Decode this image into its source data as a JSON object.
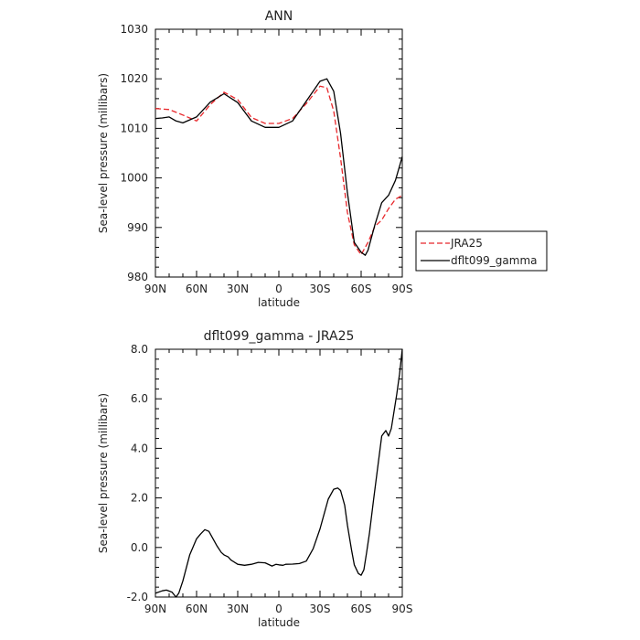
{
  "chart_data": [
    {
      "type": "line",
      "title": "ANN",
      "xlabel": "latitude",
      "ylabel": "Sea-level pressure (millibars)",
      "x_tick_labels": [
        "90N",
        "60N",
        "30N",
        "0",
        "30S",
        "60S",
        "90S"
      ],
      "x_ticks": [
        90,
        60,
        30,
        0,
        -30,
        -60,
        -90
      ],
      "xlim": [
        90,
        -90
      ],
      "y_ticks": [
        980,
        990,
        1000,
        1010,
        1020,
        1030
      ],
      "y_tick_labels": [
        "980",
        "990",
        "1000",
        "1010",
        "1020",
        "1030"
      ],
      "ylim": [
        980,
        1030
      ],
      "grid": false,
      "legend_position": "outside-right",
      "series": [
        {
          "name": "JRA25",
          "color": "#e8262a",
          "dash": true,
          "x": [
            90,
            80,
            70,
            60,
            50,
            40,
            30,
            20,
            10,
            0,
            -10,
            -20,
            -30,
            -35,
            -40,
            -45,
            -50,
            -55,
            -60,
            -65,
            -70,
            -75,
            -80,
            -85,
            -90
          ],
          "y": [
            1014,
            1013.8,
            1012.7,
            1011.5,
            1014.8,
            1017.3,
            1015.8,
            1012.2,
            1011,
            1011,
            1012,
            1015,
            1018.5,
            1018.2,
            1013.5,
            1004,
            993,
            986.5,
            984.5,
            987,
            990.2,
            991.5,
            993.8,
            995.7,
            996.5
          ]
        },
        {
          "name": "dflt099_gamma",
          "color": "#000000",
          "dash": false,
          "x": [
            90,
            85,
            80,
            75,
            70,
            60,
            50,
            40,
            30,
            20,
            10,
            0,
            -10,
            -20,
            -30,
            -35,
            -40,
            -45,
            -50,
            -55,
            -60,
            -63,
            -65,
            -70,
            -75,
            -80,
            -85,
            -90
          ],
          "y": [
            1012,
            1012.1,
            1012.3,
            1011.5,
            1011.1,
            1012.3,
            1015.3,
            1017,
            1015.2,
            1011.5,
            1010.2,
            1010.2,
            1011.5,
            1015.5,
            1019.5,
            1020,
            1017.5,
            1009,
            997,
            987,
            985,
            984.4,
            985.4,
            990.5,
            995,
            996.5,
            999.5,
            1004.3
          ]
        }
      ]
    },
    {
      "type": "line",
      "title": "dflt099_gamma - JRA25",
      "xlabel": "latitude",
      "ylabel": "Sea-level pressure (millibars)",
      "x_tick_labels": [
        "90N",
        "60N",
        "30N",
        "0",
        "30S",
        "60S",
        "90S"
      ],
      "x_ticks": [
        90,
        60,
        30,
        0,
        -30,
        -60,
        -90
      ],
      "xlim": [
        90,
        -90
      ],
      "y_ticks": [
        -2,
        0,
        2,
        4,
        6,
        8
      ],
      "y_tick_labels": [
        "-2.0",
        "0.0",
        "2.0",
        "4.0",
        "6.0",
        "8.0"
      ],
      "ylim": [
        -2,
        8
      ],
      "grid": false,
      "series": [
        {
          "name": "",
          "color": "#000000",
          "dash": false,
          "x": [
            90,
            85,
            82,
            78,
            75,
            73,
            70,
            65,
            60,
            57,
            54,
            51,
            48,
            45,
            42,
            40,
            37,
            35,
            30,
            25,
            20,
            15,
            10,
            5,
            2,
            0,
            -3,
            -5,
            -10,
            -15,
            -20,
            -25,
            -30,
            -33,
            -36,
            -40,
            -43,
            -45,
            -48,
            -50,
            -53,
            -55,
            -58,
            -60,
            -62,
            -64,
            -66,
            -69,
            -72,
            -75,
            -78,
            -80,
            -82,
            -84,
            -86,
            -88,
            -90
          ],
          "y": [
            -1.85,
            -1.75,
            -1.72,
            -1.8,
            -2.0,
            -1.85,
            -1.35,
            -0.3,
            0.35,
            0.55,
            0.72,
            0.65,
            0.35,
            0.05,
            -0.2,
            -0.3,
            -0.38,
            -0.5,
            -0.68,
            -0.72,
            -0.68,
            -0.6,
            -0.62,
            -0.75,
            -0.68,
            -0.7,
            -0.72,
            -0.68,
            -0.67,
            -0.65,
            -0.55,
            -0.05,
            0.75,
            1.35,
            1.95,
            2.35,
            2.4,
            2.3,
            1.7,
            0.9,
            -0.1,
            -0.7,
            -1.05,
            -1.12,
            -0.9,
            -0.2,
            0.55,
            1.9,
            3.2,
            4.5,
            4.72,
            4.5,
            4.8,
            5.5,
            6.2,
            7.0,
            8.0
          ]
        }
      ]
    }
  ]
}
